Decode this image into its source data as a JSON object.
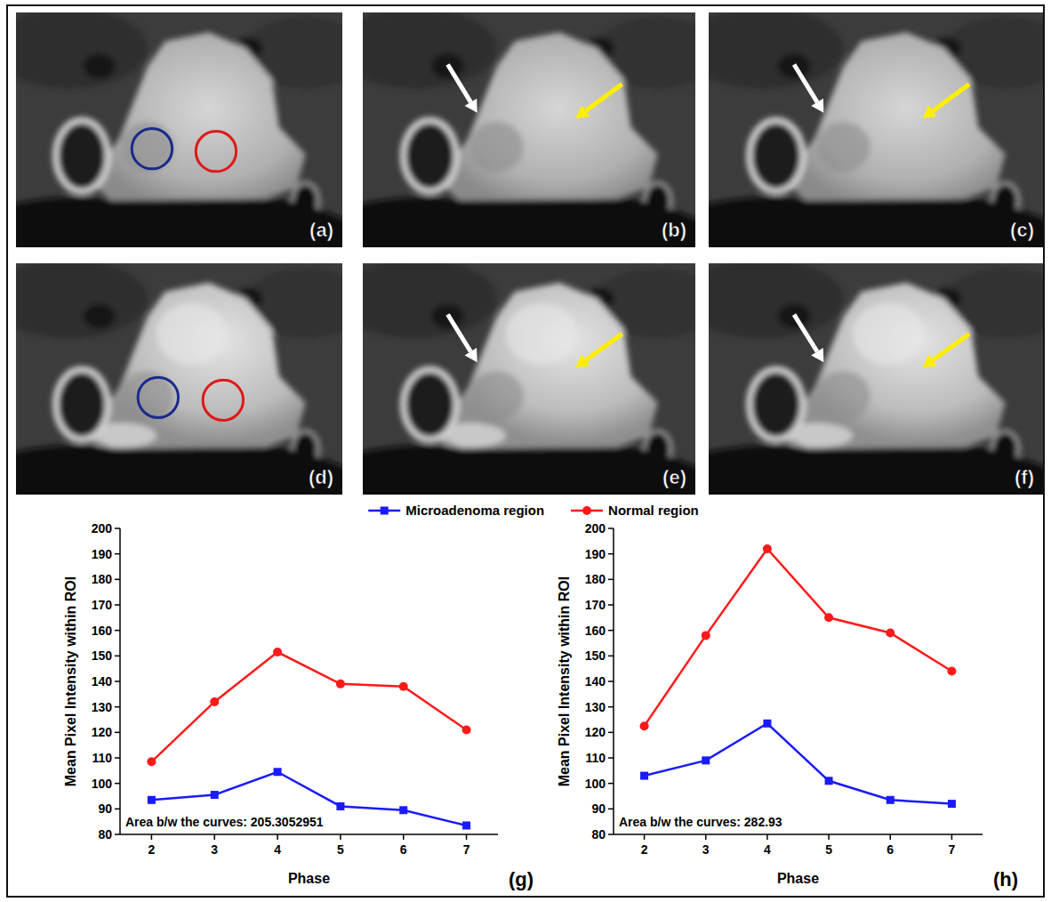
{
  "images": {
    "labels": [
      "(a)",
      "(b)",
      "(c)",
      "(d)",
      "(e)",
      "(f)"
    ]
  },
  "chart_data": [
    {
      "type": "line",
      "panel_label": "(g)",
      "x_label": "Phase",
      "y_label": "Mean Pixel Intensity within ROI",
      "annotation": "Area b/w the curves: 205.3052951",
      "x": [
        2,
        3,
        4,
        5,
        6,
        7
      ],
      "series": [
        {
          "name": "Microadenoma region",
          "color": "#1a1aff",
          "marker": "square",
          "line_style": "solid",
          "values": [
            93.5,
            95.5,
            104.5,
            91,
            89.5,
            83.5
          ]
        },
        {
          "name": "Normal region",
          "color": "#ff1a1a",
          "marker": "circle",
          "line_style": "solid",
          "values": [
            108.5,
            132,
            151.5,
            139,
            138,
            121
          ]
        }
      ],
      "xlim": [
        1.5,
        7.5
      ],
      "xticks": [
        2,
        3,
        4,
        5,
        6,
        7
      ],
      "ylim": [
        80,
        200
      ],
      "yticks": [
        80,
        90,
        100,
        110,
        120,
        130,
        140,
        150,
        160,
        170,
        180,
        190,
        200
      ],
      "grid": false,
      "legend": "top"
    },
    {
      "type": "line",
      "panel_label": "(h)",
      "x_label": "Phase",
      "y_label": "Mean Pixel Intensity within ROI",
      "annotation": "Area b/w the curves: 282.93",
      "x": [
        2,
        3,
        4,
        5,
        6,
        7
      ],
      "series": [
        {
          "color": "#1a1aff",
          "marker": "square",
          "line_style": "solid",
          "values": [
            103,
            109,
            123.5,
            101,
            93.5,
            92
          ]
        },
        {
          "color": "#ff1a1a",
          "marker": "circle",
          "line_style": "solid",
          "values": [
            122.5,
            158,
            192,
            165,
            159,
            144
          ]
        }
      ],
      "xlim": [
        1.5,
        7.5
      ],
      "xticks": [
        2,
        3,
        4,
        5,
        6,
        7
      ],
      "ylim": [
        80,
        200
      ],
      "yticks": [
        80,
        90,
        100,
        110,
        120,
        130,
        140,
        150,
        160,
        170,
        180,
        190,
        200
      ],
      "grid": false
    }
  ]
}
